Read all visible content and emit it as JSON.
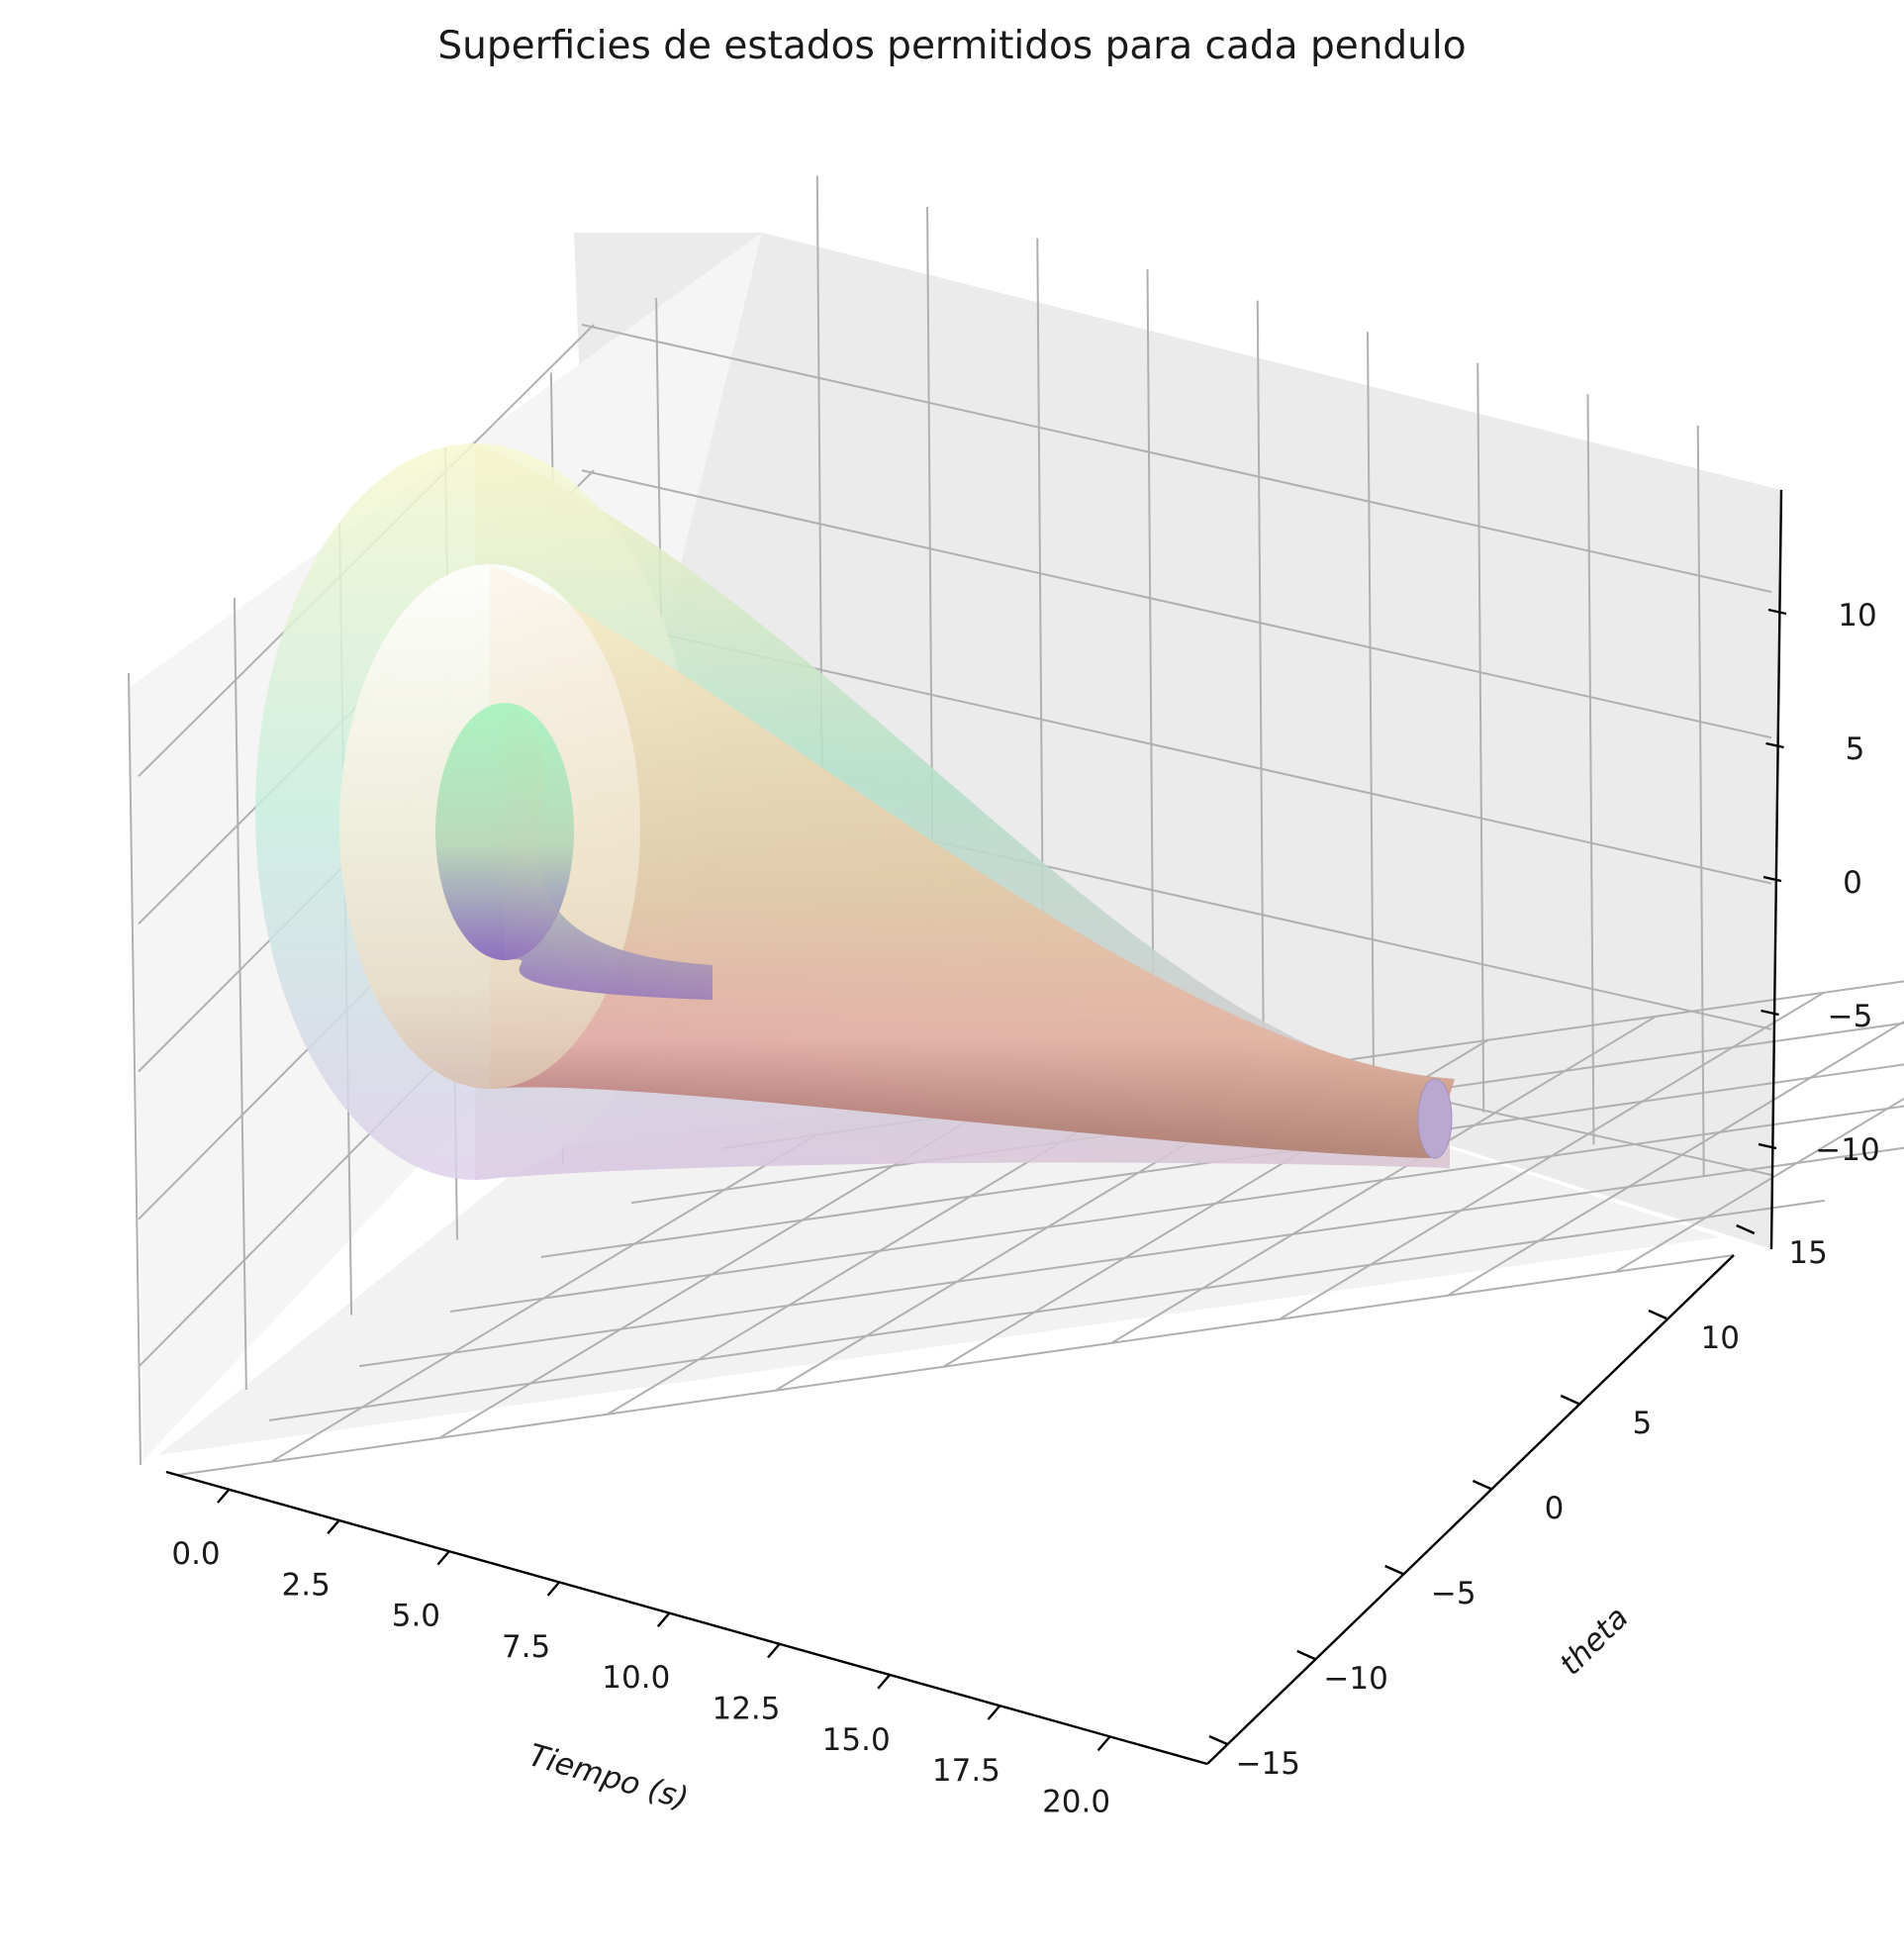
{
  "chart_data": {
    "type": "surface3d",
    "title": "Superficies de estados permitidos para cada pendulo",
    "xlabel": "Tiempo (s)",
    "ylabel": "theta",
    "zlabel": "",
    "x_ticks": [
      "0.0",
      "2.5",
      "5.0",
      "7.5",
      "10.0",
      "12.5",
      "15.0",
      "17.5",
      "20.0"
    ],
    "y_ticks": [
      "−15",
      "−10",
      "−5",
      "0",
      "5",
      "10",
      "15"
    ],
    "z_ticks": [
      "−10",
      "−5",
      "0",
      "5",
      "10"
    ],
    "xlim": [
      0,
      20
    ],
    "ylim": [
      -15,
      15
    ],
    "zlim": [
      -13,
      13
    ],
    "grid": true,
    "series": [
      {
        "colormap": "Pastel",
        "x_range": [
          0,
          20
        ],
        "radius_start": 12,
        "radius_end": 1.5,
        "colors": [
          "#d8c4e8",
          "#a8e4d0",
          "#faf7c8"
        ]
      },
      {
        "colormap": "Pastel",
        "x_range": [
          0,
          20
        ],
        "radius_start": 10,
        "radius_end": 1.5,
        "colors": [
          "#7a3840",
          "#e89898",
          "#faf7c8"
        ]
      },
      {
        "colormap": "Pastel",
        "x_range": [
          0,
          9
        ],
        "radius_start": 7,
        "radius_end": 5.5,
        "colors": [
          "#8a6ac0",
          "#d4c8e8",
          "#a8f4c0"
        ]
      }
    ]
  }
}
